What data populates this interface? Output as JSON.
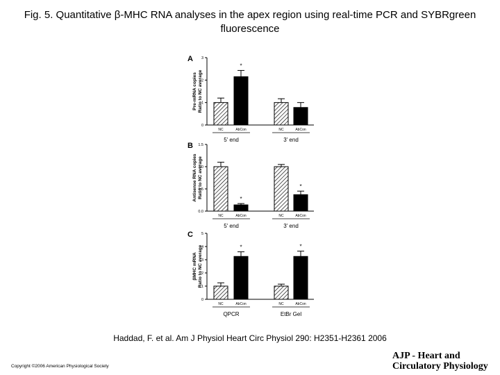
{
  "title": "Fig. 5. Quantitative β-MHC RNA analyses in the apex region using real-time PCR and SYBRgreen fluorescence",
  "citation": "Haddad, F. et al. Am J Physiol Heart Circ Physiol 290: H2351-H2361 2006",
  "copyright": "Copyright ©2006 American Physiological Society",
  "journal_logo": [
    "AJP - Heart and",
    "Circulatory Physiology"
  ],
  "colors": {
    "nc_fill": "hatched",
    "abcon_fill": "#000000"
  },
  "chart_data": [
    {
      "type": "bar",
      "panel": "A",
      "ylabel_lines": [
        "Pre-mRNA copies",
        "Ratio to NC average"
      ],
      "ylim": [
        0,
        3
      ],
      "yticks": [
        "0",
        "1",
        "2",
        "3"
      ],
      "groups": [
        "5' end",
        "3' end"
      ],
      "categories": [
        "NC",
        "AbCon"
      ],
      "values": [
        [
          1.0,
          2.15
        ],
        [
          1.0,
          0.78
        ]
      ],
      "errors": [
        [
          0.2,
          0.28
        ],
        [
          0.17,
          0.22
        ]
      ],
      "significance": [
        [
          "",
          "*"
        ],
        [
          "",
          ""
        ]
      ]
    },
    {
      "type": "bar",
      "panel": "B",
      "ylabel_lines": [
        "Antisense RNA copies",
        "Ratio to NC average"
      ],
      "ylim": [
        0,
        1.5
      ],
      "yticks": [
        "0.0",
        "0.5",
        "1.0",
        "1.5"
      ],
      "groups": [
        "5' end",
        "3' end"
      ],
      "categories": [
        "NC",
        "AbCon"
      ],
      "values": [
        [
          1.0,
          0.14
        ],
        [
          1.0,
          0.37
        ]
      ],
      "errors": [
        [
          0.1,
          0.03
        ],
        [
          0.05,
          0.08
        ]
      ],
      "significance": [
        [
          "",
          "*"
        ],
        [
          "",
          "*"
        ]
      ]
    },
    {
      "type": "bar",
      "panel": "C",
      "ylabel_lines": [
        "βMHC mRNA",
        "Ratio to NC average"
      ],
      "ylim": [
        0,
        5
      ],
      "yticks": [
        "0",
        "1",
        "2",
        "3",
        "4",
        "5"
      ],
      "groups": [
        "QPCR",
        "EtBr Gel"
      ],
      "categories": [
        "NC",
        "AbCon"
      ],
      "values": [
        [
          1.0,
          3.25
        ],
        [
          1.0,
          3.25
        ]
      ],
      "errors": [
        [
          0.25,
          0.35
        ],
        [
          0.15,
          0.4
        ]
      ],
      "significance": [
        [
          "",
          "*"
        ],
        [
          "",
          "*"
        ]
      ]
    }
  ]
}
